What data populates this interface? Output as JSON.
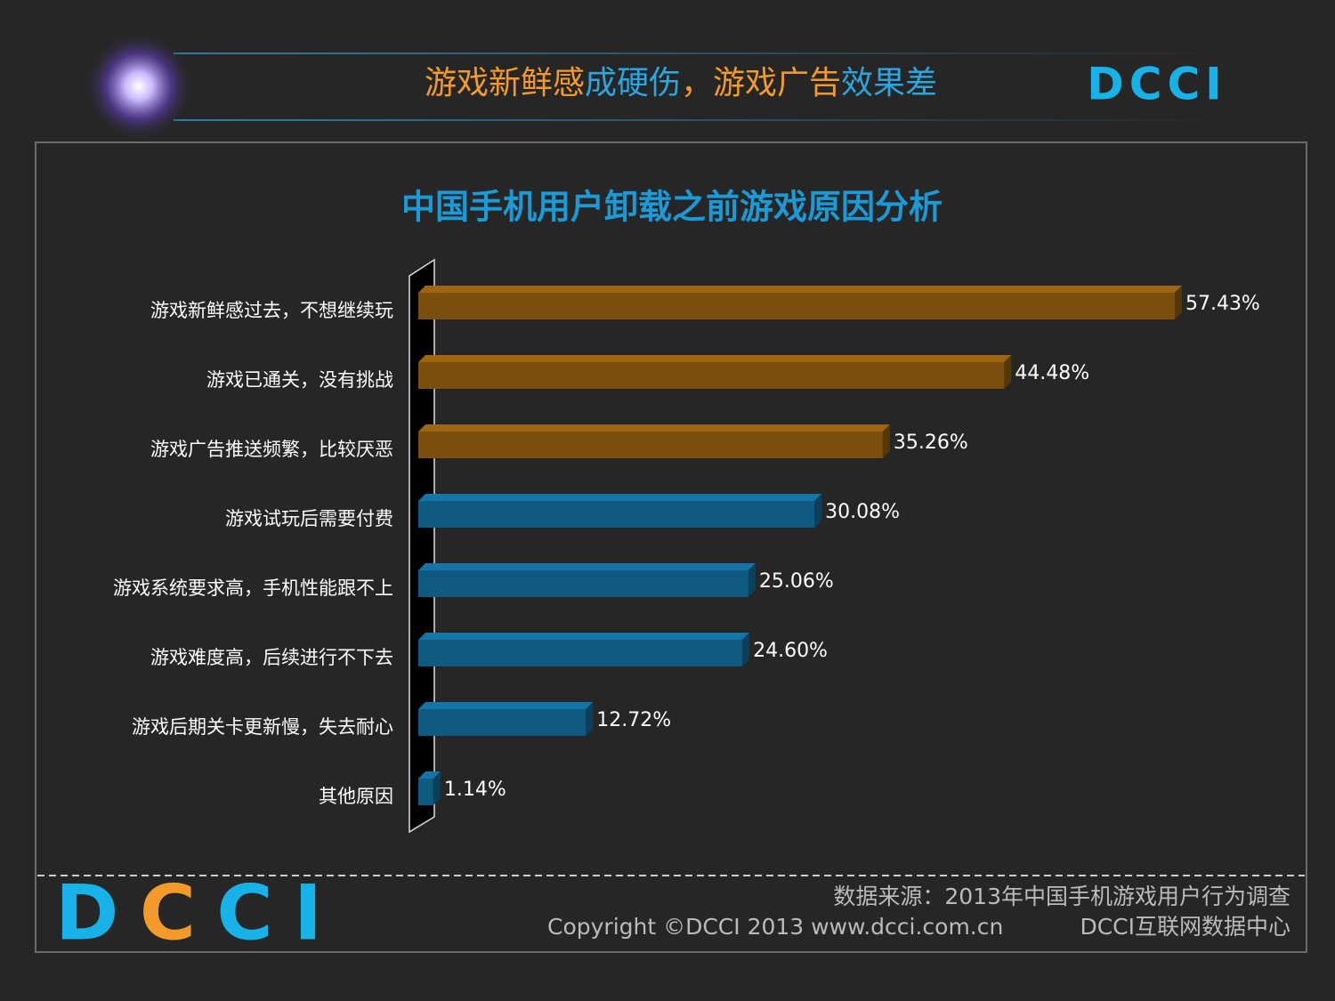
{
  "header": {
    "title_parts": [
      {
        "text": "游戏新鲜感",
        "color": "#f39a2b"
      },
      {
        "text": "成硬伤",
        "color": "#2aa6e0"
      },
      {
        "text": "，游戏广告",
        "color": "#f39a2b"
      },
      {
        "text": "效果差",
        "color": "#2aa6e0"
      }
    ],
    "logo": "DCCI"
  },
  "chart_data": {
    "type": "hbar",
    "title": "中国手机用户卸载之前游戏原因分析",
    "categories": [
      "游戏新鲜感过去，不想继续玩",
      "游戏已通关，没有挑战",
      "游戏广告推送频繁，比较厌恶",
      "游戏试玩后需要付费",
      "游戏系统要求高，手机性能跟不上",
      "游戏难度高，后续进行不下去",
      "游戏后期关卡更新慢，失去耐心",
      "其他原因"
    ],
    "values": [
      57.43,
      44.48,
      35.26,
      30.08,
      25.06,
      24.6,
      12.72,
      1.14
    ],
    "value_labels": [
      "57.43%",
      "44.48%",
      "35.26%",
      "30.08%",
      "25.06%",
      "24.60%",
      "12.72%",
      "1.14%"
    ],
    "colors": [
      "#7a4e0c",
      "#7a4e0c",
      "#7a4e0c",
      "#0f5a80",
      "#0f5a80",
      "#0f5a80",
      "#0f5a80",
      "#0f5a80"
    ],
    "xlim": [
      0,
      60
    ]
  },
  "footer": {
    "source": "数据来源：2013年中国手机游戏用户行为调查",
    "copyright": "Copyright ©DCCI 2013 www.dcci.com.cn",
    "org": "DCCI互联网数据中心",
    "logo": "DCCI"
  }
}
